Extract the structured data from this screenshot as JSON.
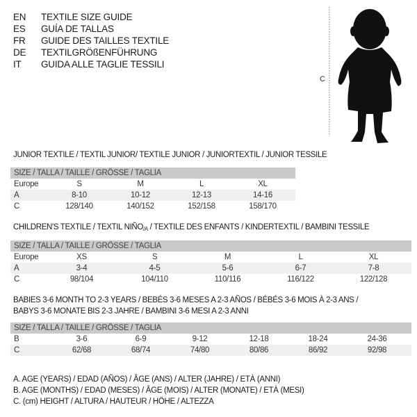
{
  "languages": [
    {
      "code": "EN",
      "title": "TEXTILE SIZE GUIDE"
    },
    {
      "code": "ES",
      "title": "GUÍA DE TALLAS"
    },
    {
      "code": "FR",
      "title": "GUIDE DES TAILLES TEXTILE"
    },
    {
      "code": "DE",
      "title": "TEXTILGRÖßENFÜHRUNG"
    },
    {
      "code": "IT",
      "title": "GUIDA ALLE TAGLIE TESSILI"
    }
  ],
  "figure": {
    "label": "C",
    "icon": "toddler-silhouette"
  },
  "size_header": "SIZE / TALLA / TAILLE / GRÖSSE / TAGLIA",
  "junior": {
    "title": "JUNIOR TEXTILE / TEXTIL JUNIOR/ TEXTILE JUNIOR / JUNIORTEXTIL / JUNIOR TESSILE",
    "rows": [
      {
        "label": "Europe",
        "values": [
          "S",
          "M",
          "L",
          "XL"
        ]
      },
      {
        "label": "A",
        "values": [
          "8-10",
          "10-12",
          "12-13",
          "14-16"
        ]
      },
      {
        "label": "C",
        "values": [
          "128/140",
          "140/152",
          "152/158",
          "158/170"
        ]
      }
    ]
  },
  "children": {
    "title_a": "CHILDREN'S TEXTILE / TEXTIL NIÑO",
    "title_sub": "/A",
    "title_b": " / TEXTILE DES ENFANTS / KINDERTEXTIL / BAMBINI TESSILE",
    "rows": [
      {
        "label": "Europe",
        "values": [
          "XS",
          "S",
          "M",
          "L",
          "XL"
        ]
      },
      {
        "label": "A",
        "values": [
          "3-4",
          "4-5",
          "5-6",
          "6-7",
          "7-8"
        ]
      },
      {
        "label": "C",
        "values": [
          "98/104",
          "104/110",
          "110/116",
          "116/122",
          "122/128"
        ]
      }
    ]
  },
  "babies": {
    "title_line1": "BABIES 3-6 MONTH TO 2-3 YEARS / BEBÉS 3-6 MESES A 2-3 AÑOS / BÉBÉS 3-6 MOIS À 2-3 ANS /",
    "title_line2": "BABYS 3-6 MONATE BIS 2-3 JAHRE / BAMBINI 3-6 MESI A 2-3 ANNI",
    "rows": [
      {
        "label": "B",
        "values": [
          "3-6",
          "6-9",
          "9-12",
          "12-18",
          "18-24",
          "24-36"
        ]
      },
      {
        "label": "C",
        "values": [
          "62/68",
          "68/74",
          "74/80",
          "80/86",
          "86/92",
          "92/98"
        ]
      }
    ]
  },
  "legend": [
    "A. AGE (YEARS) / EDAD (AÑOS) / ÂGE (ANS) / ALTER (JAHRE) / ETÀ (ANNI)",
    "B. AGE (MONTHS) / EDAD (MESES) / ÂGE (MOIS) / ALTER (MONATE) / ETÀ (MESI)",
    "C. (cm) HEIGHT / ALTURA / HAUTEUR / HÖHE / ALTEZZA"
  ]
}
